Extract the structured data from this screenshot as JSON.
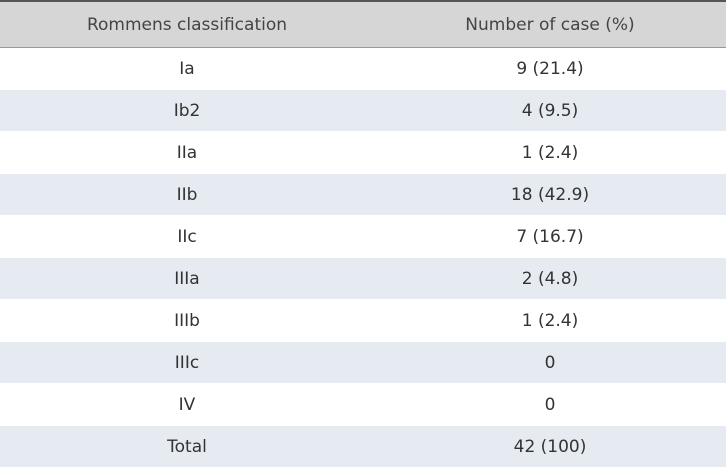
{
  "table": {
    "header": [
      "Rommens classification",
      "Number of case (%)"
    ],
    "rows": [
      [
        "Ia",
        "9 (21.4)"
      ],
      [
        "Ib2",
        "4 (9.5)"
      ],
      [
        "IIa",
        "1 (2.4)"
      ],
      [
        "IIb",
        "18 (42.9)"
      ],
      [
        "IIc",
        "7 (16.7)"
      ],
      [
        "IIIa",
        "2 (4.8)"
      ],
      [
        "IIIb",
        "1 (2.4)"
      ],
      [
        "IIIc",
        "0"
      ],
      [
        "IV",
        "0"
      ],
      [
        "Total",
        "42 (100)"
      ]
    ]
  }
}
